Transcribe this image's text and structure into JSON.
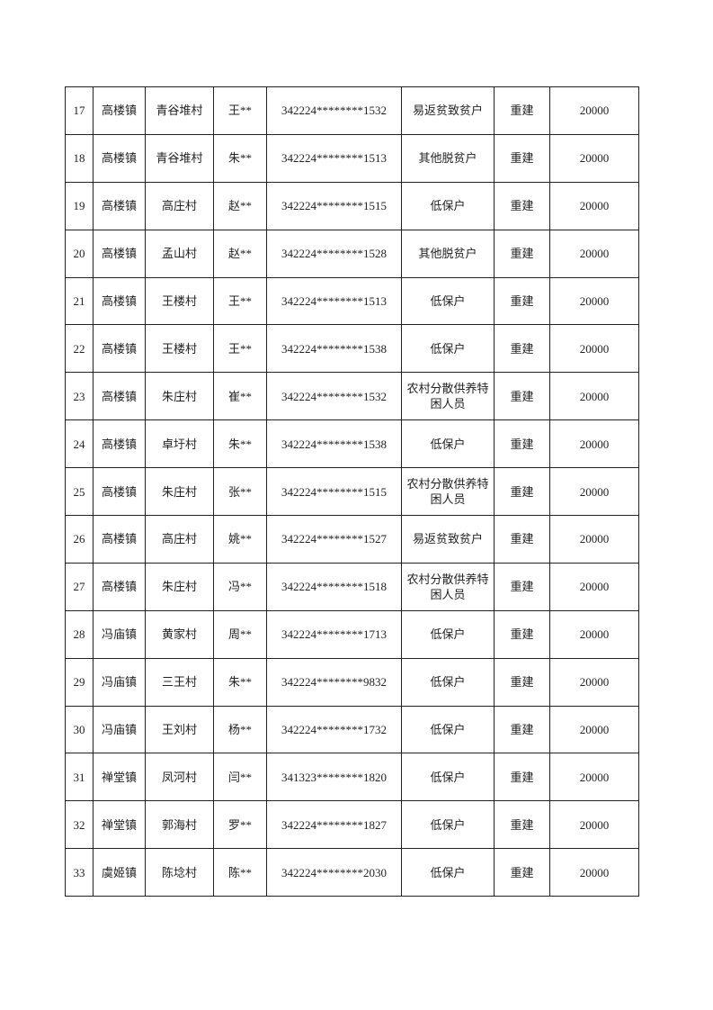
{
  "table": {
    "rows": [
      [
        "17",
        "高楼镇",
        "青谷堆村",
        "王**",
        "342224********1532",
        "易返贫致贫户",
        "重建",
        "20000"
      ],
      [
        "18",
        "高楼镇",
        "青谷堆村",
        "朱**",
        "342224********1513",
        "其他脱贫户",
        "重建",
        "20000"
      ],
      [
        "19",
        "高楼镇",
        "高庄村",
        "赵**",
        "342224********1515",
        "低保户",
        "重建",
        "20000"
      ],
      [
        "20",
        "高楼镇",
        "孟山村",
        "赵**",
        "342224********1528",
        "其他脱贫户",
        "重建",
        "20000"
      ],
      [
        "21",
        "高楼镇",
        "王楼村",
        "王**",
        "342224********1513",
        "低保户",
        "重建",
        "20000"
      ],
      [
        "22",
        "高楼镇",
        "王楼村",
        "王**",
        "342224********1538",
        "低保户",
        "重建",
        "20000"
      ],
      [
        "23",
        "高楼镇",
        "朱庄村",
        "崔**",
        "342224********1532",
        "农村分散供养特困人员",
        "重建",
        "20000"
      ],
      [
        "24",
        "高楼镇",
        "卓圩村",
        "朱**",
        "342224********1538",
        "低保户",
        "重建",
        "20000"
      ],
      [
        "25",
        "高楼镇",
        "朱庄村",
        "张**",
        "342224********1515",
        "农村分散供养特困人员",
        "重建",
        "20000"
      ],
      [
        "26",
        "高楼镇",
        "高庄村",
        "姚**",
        "342224********1527",
        "易返贫致贫户",
        "重建",
        "20000"
      ],
      [
        "27",
        "高楼镇",
        "朱庄村",
        "冯**",
        "342224********1518",
        "农村分散供养特困人员",
        "重建",
        "20000"
      ],
      [
        "28",
        "冯庙镇",
        "黄家村",
        "周**",
        "342224********1713",
        "低保户",
        "重建",
        "20000"
      ],
      [
        "29",
        "冯庙镇",
        "三王村",
        "朱**",
        "342224********9832",
        "低保户",
        "重建",
        "20000"
      ],
      [
        "30",
        "冯庙镇",
        "王刘村",
        "杨**",
        "342224********1732",
        "低保户",
        "重建",
        "20000"
      ],
      [
        "31",
        "禅堂镇",
        "凤河村",
        "闫**",
        "341323********1820",
        "低保户",
        "重建",
        "20000"
      ],
      [
        "32",
        "禅堂镇",
        "郭海村",
        "罗**",
        "342224********1827",
        "低保户",
        "重建",
        "20000"
      ],
      [
        "33",
        "虞姬镇",
        "陈埝村",
        "陈**",
        "342224********2030",
        "低保户",
        "重建",
        "20000"
      ]
    ]
  }
}
